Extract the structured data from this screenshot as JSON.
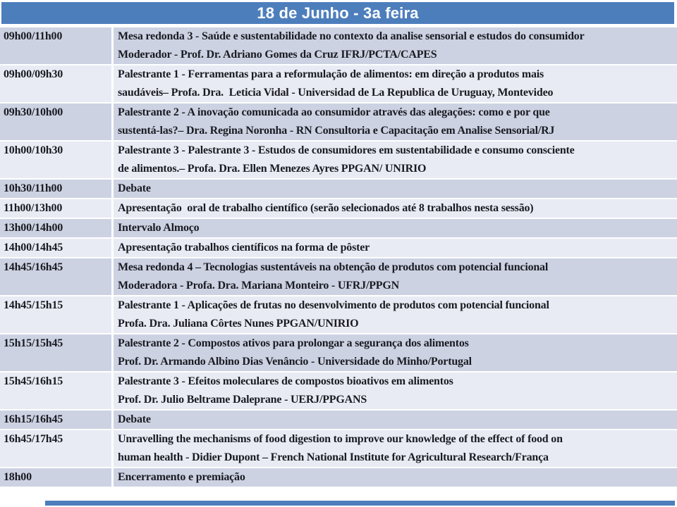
{
  "page": {
    "title": "18 de Junho - 3a feira"
  },
  "colors": {
    "header_bg": "#4d7ebc",
    "band_dark": "#ccd2e2",
    "band_light": "#e9ebf4",
    "text_color": "#1a1b22",
    "title_text": "#ffffff"
  },
  "table": {
    "columns": [
      "time",
      "session"
    ],
    "rows": [
      {
        "time": "09h00/11h00",
        "band": "dark",
        "lines": [
          "Mesa redonda 3 - Saúde e sustentabilidade no contexto da analise sensorial e estudos do consumidor",
          "Moderador - Prof. Dr. Adriano Gomes da Cruz IFRJ/PCTA/CAPES"
        ]
      },
      {
        "time": "09h00/09h30",
        "band": "light",
        "lines": [
          "Palestrante 1 - Ferramentas para a reformulação de alimentos: em direção a produtos mais",
          "saudáveis– Profa. Dra.  Leticia Vidal - Universidad de La Republica de Uruguay, Montevideo"
        ]
      },
      {
        "time": "09h30/10h00",
        "band": "dark",
        "lines": [
          "Palestrante 2 - A inovação comunicada ao consumidor através das alegações: como e por que",
          "sustentá-las?– Dra. Regina Noronha - RN Consultoria e Capacitação em Analise Sensorial/RJ"
        ]
      },
      {
        "time": "10h00/10h30",
        "band": "light",
        "lines": [
          "Palestrante 3 - Palestrante 3 - Estudos de consumidores em sustentabilidade e consumo consciente",
          "de alimentos.– Profa. Dra. Ellen Menezes Ayres PPGAN/ UNIRIO"
        ]
      },
      {
        "time": "10h30/11h00",
        "band": "dark",
        "lines": [
          "Debate"
        ]
      },
      {
        "time": "11h00/13h00",
        "band": "light",
        "lines": [
          "Apresentação  oral de trabalho científico (serão selecionados até 8 trabalhos nesta sessão)"
        ]
      },
      {
        "time": "13h00/14h00",
        "band": "dark",
        "lines": [
          "Intervalo Almoço"
        ]
      },
      {
        "time": "14h00/14h45",
        "band": "light",
        "lines": [
          "Apresentação trabalhos científicos na forma de pôster"
        ]
      },
      {
        "time": "14h45/16h45",
        "band": "dark",
        "lines": [
          "Mesa redonda 4 – Tecnologias sustentáveis na obtenção de produtos com potencial funcional",
          "Moderadora - Profa. Dra. Mariana Monteiro - UFRJ/PPGN"
        ]
      },
      {
        "time": "14h45/15h15",
        "band": "light",
        "lines": [
          "Palestrante 1 - Aplicações de frutas no desenvolvimento de produtos com potencial funcional",
          "Profa. Dra. Juliana Côrtes Nunes PPGAN/UNIRIO"
        ]
      },
      {
        "time": "15h15/15h45",
        "band": "dark",
        "lines": [
          "Palestrante 2 - Compostos ativos para prolongar a segurança dos alimentos",
          "Prof. Dr. Armando Albino Dias Venâncio - Universidade do Minho/Portugal"
        ]
      },
      {
        "time": "15h45/16h15",
        "band": "light",
        "lines": [
          "Palestrante 3 - Efeitos moleculares de compostos bioativos em alimentos",
          "Prof. Dr. Julio Beltrame Daleprane - UERJ/PPGANS"
        ]
      },
      {
        "time": "16h15/16h45",
        "band": "dark",
        "lines": [
          "Debate"
        ]
      },
      {
        "time": "16h45/17h45",
        "band": "light",
        "lines": [
          "Unravelling the mechanisms of food digestion to improve our knowledge of the effect of food on",
          "human health - Didier Dupont – French National Institute for Agricultural Research/França"
        ]
      },
      {
        "time": "18h00",
        "band": "dark",
        "lines": [
          "Encerramento e premiação"
        ]
      }
    ]
  }
}
